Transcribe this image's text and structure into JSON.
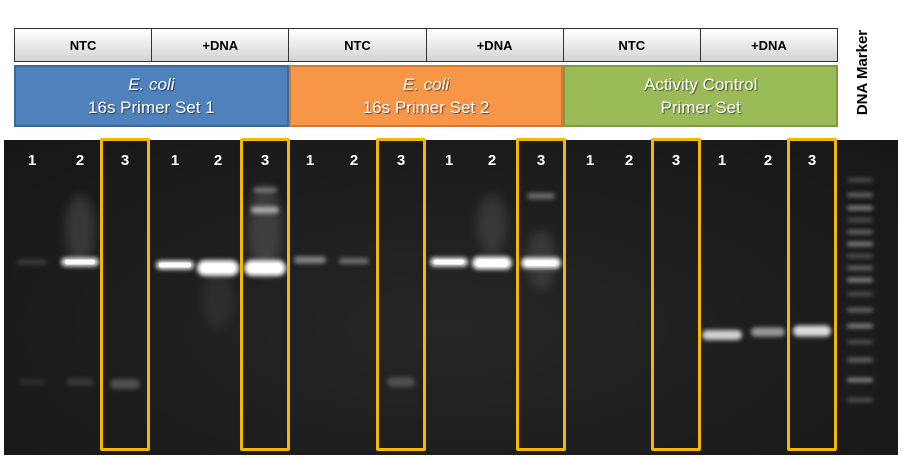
{
  "conditions": [
    "NTC",
    "+DNA",
    "NTC",
    "+DNA",
    "NTC",
    "+DNA"
  ],
  "primers": [
    {
      "line1": "E. coli",
      "line2": "16s Primer Set 1",
      "color": "#4f81bd",
      "border": "#3a6898"
    },
    {
      "line1": "E. coli",
      "line2": "16s Primer Set 2",
      "color": "#f79646",
      "border": "#d27a30"
    },
    {
      "line1": "Activity Control",
      "line2": "Primer Set",
      "color": "#9bbb59",
      "border": "#7a9c3f"
    }
  ],
  "marker_label": "DNA Marker",
  "lane_numbers": [
    "1",
    "2",
    "3",
    "1",
    "2",
    "3",
    "1",
    "2",
    "3",
    "1",
    "2",
    "3",
    "1",
    "2",
    "3",
    "1",
    "2",
    "3"
  ],
  "highlight_color": "#f5b800",
  "gel_color": "#1e1e1e"
}
